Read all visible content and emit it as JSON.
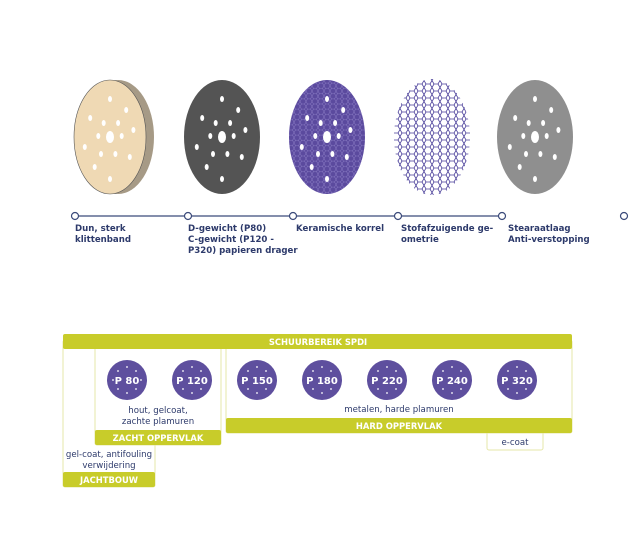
{
  "colors": {
    "accent_lime": "#c8cc2a",
    "grit_purple": "#5e4f9e",
    "text_navy": "#2d3a6b",
    "timeline": "#3b4a7a"
  },
  "discs": [
    {
      "name": "cream-foam-disc",
      "color": "#efd9b4"
    },
    {
      "name": "dark-grey-disc",
      "color": "#545454"
    },
    {
      "name": "purple-ceramic-disc",
      "color": "#5b4a9e"
    },
    {
      "name": "hex-mesh-disc",
      "color": "#4a3f9a"
    },
    {
      "name": "grey-stearate-disc",
      "color": "#8f8f8f"
    }
  ],
  "timeline": {
    "labels": [
      [
        "Dun, sterk",
        "klittenband"
      ],
      [
        "D-gewicht (P80)",
        "C-gewicht (P120 -",
        "P320) papieren drager"
      ],
      [
        "Keramische korrel"
      ],
      [
        "Stofafzuigende ge-",
        "ometrie"
      ],
      [
        "Stearaatlaag",
        "Anti-verstopping"
      ]
    ]
  },
  "range": {
    "title": "SCHUURBEREIK SPDI",
    "grits": [
      "P 80",
      "P 120",
      "P 150",
      "P 180",
      "P 220",
      "P 240",
      "P 320"
    ],
    "jachtbouw": {
      "label": "JACHTBOUW",
      "desc": [
        "gel-coat, antifouling",
        "verwijdering"
      ]
    },
    "zacht": {
      "label": "ZACHT OPPERVLAK",
      "desc": [
        "hout, gelcoat,",
        "zachte plamuren"
      ]
    },
    "hard": {
      "label": "HARD OPPERVLAK",
      "desc": [
        "metalen, harde plamuren"
      ]
    },
    "ecoat": {
      "label": "e-coat"
    }
  }
}
